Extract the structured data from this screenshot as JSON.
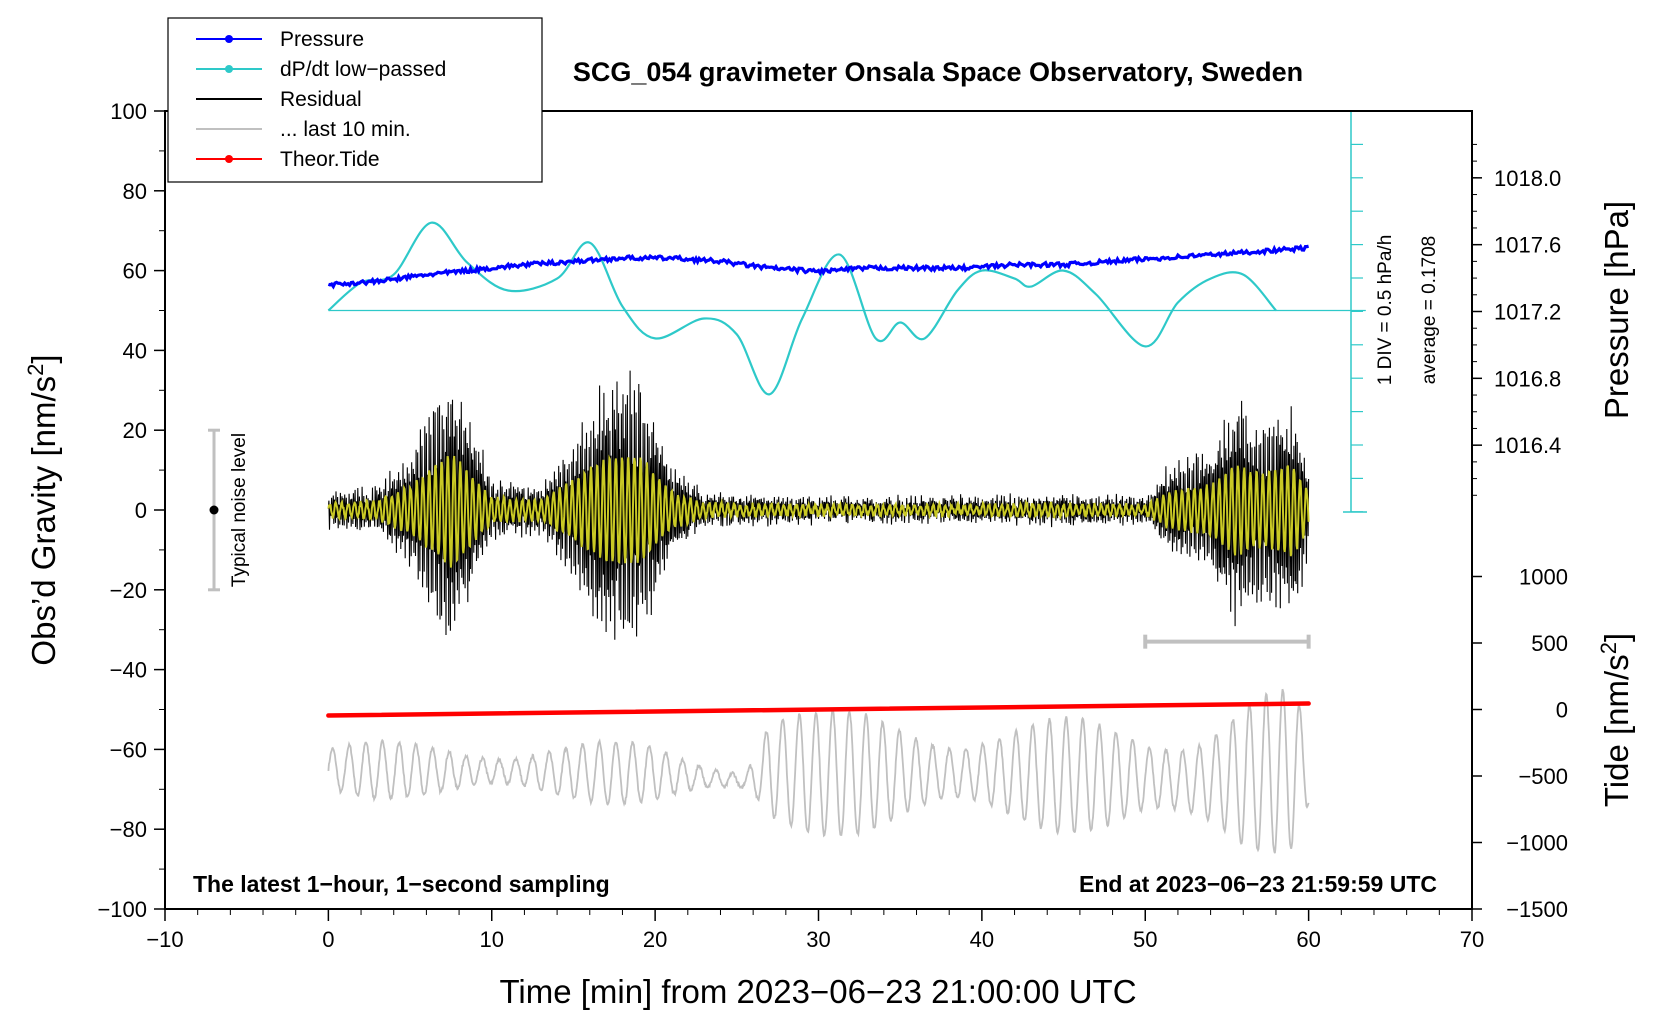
{
  "chart_data": {
    "type": "line",
    "title": "SCG_054 gravimeter Onsala Space Observatory, Sweden",
    "xlabel": "Time [min] from 2023−06−23 21:00:00 UTC",
    "ylabel": "Obs’d Gravity [nm/s²]",
    "ylabel_base": "Obs’d Gravity [nm/s",
    "ylabel_sup": "2",
    "ylabel_close": "]",
    "xlim": [
      -10,
      70
    ],
    "ylim": [
      -100,
      100
    ],
    "x_ticks": [
      "−10",
      "0",
      "10",
      "20",
      "30",
      "40",
      "50",
      "60",
      "70"
    ],
    "y_ticks": [
      "−100",
      "−80",
      "−60",
      "−40",
      "−20",
      "0",
      "20",
      "40",
      "60",
      "80",
      "100"
    ],
    "right_axis_pressure": {
      "label": "Pressure [hPa]",
      "range": [
        1016.0,
        1018.4
      ],
      "ticks": [
        "1016.4",
        "1016.8",
        "1017.2",
        "1017.6",
        "1018.0"
      ]
    },
    "right_axis_tide": {
      "label_base": "Tide [nm/s",
      "label_sup": "2",
      "label_close": "]",
      "ticks": [
        "−1500",
        "−1000",
        "−500",
        "0",
        "500",
        "1000"
      ]
    },
    "legend": [
      {
        "name": "Pressure",
        "color": "#0000ff",
        "marker": true
      },
      {
        "name": "dP/dt low−passed",
        "color": "#2ec9c9",
        "marker": true
      },
      {
        "name": "Residual",
        "color": "#000000",
        "marker": false
      },
      {
        "name": "... last 10 min.",
        "color": "#c0c0c0",
        "marker": false
      },
      {
        "name": "Theor.Tide",
        "color": "#ff0000",
        "marker": true
      }
    ],
    "annotations": {
      "left_note": "The latest 1−hour, 1−second sampling",
      "right_note": "End at 2023−06−23 21:59:59 UTC",
      "noise_label": "Typical noise level",
      "noise_range": [
        -20,
        20
      ],
      "div_label": "1 DIV = 0.5 hPa/h",
      "average_label": "average = 0.1708",
      "last10_bar_minutes": [
        50,
        60
      ]
    },
    "series": [
      {
        "name": "Pressure",
        "unit": "hPa",
        "x": [
          0,
          3,
          6,
          9,
          12,
          15,
          18,
          21,
          24,
          27,
          30,
          33,
          36,
          39,
          42,
          45,
          48,
          51,
          54,
          57,
          60
        ],
        "values": [
          1017.36,
          1017.38,
          1017.42,
          1017.45,
          1017.48,
          1017.5,
          1017.52,
          1017.52,
          1017.5,
          1017.46,
          1017.44,
          1017.46,
          1017.46,
          1017.46,
          1017.48,
          1017.48,
          1017.5,
          1017.52,
          1017.54,
          1017.56,
          1017.58
        ]
      },
      {
        "name": "dP/dt low−passed",
        "unit": "nm/s² (plotted scale)",
        "x": [
          0,
          2,
          4,
          6.3,
          8.5,
          11,
          14,
          16,
          18,
          20,
          23,
          25,
          27,
          29,
          31.3,
          33.5,
          35,
          36.5,
          38.5,
          40,
          42,
          43,
          45,
          47,
          50,
          52,
          54,
          56,
          58
        ],
        "values": [
          50,
          57,
          59,
          72,
          62,
          55,
          58,
          67,
          51,
          43,
          48,
          44,
          29,
          48,
          64,
          43,
          47,
          43,
          55,
          60,
          58,
          56,
          60,
          54,
          41,
          52,
          58,
          59,
          50
        ]
      },
      {
        "name": "Residual",
        "unit": "nm/s²",
        "envelope_x": [
          0,
          3,
          5,
          7.5,
          10,
          13,
          17,
          19,
          21,
          23,
          30,
          40,
          45,
          50,
          51.5,
          54,
          55.5,
          57,
          59,
          60
        ],
        "envelope_amplitude": [
          4,
          6,
          15,
          38,
          8,
          6,
          34,
          36,
          12,
          4,
          3,
          3,
          4,
          3,
          12,
          16,
          30,
          24,
          30,
          12
        ]
      },
      {
        "name": "Theor.Tide",
        "unit": "nm/s²",
        "x": [
          0,
          60
        ],
        "values": [
          -51.5,
          -48.5
        ]
      },
      {
        "name": "... last 10 min.",
        "unit": "nm/s² (plotted scale)",
        "x": [
          0,
          20,
          25.5,
          27,
          30,
          40,
          50,
          53,
          56,
          59,
          60
        ],
        "values": [
          -65,
          -66,
          -68,
          -65,
          -66,
          -66,
          -67,
          -68,
          -67,
          -65,
          -64
        ],
        "swing_amplitude": [
          7,
          8,
          4,
          20,
          16,
          15,
          14,
          20,
          24,
          20,
          10
        ]
      }
    ]
  }
}
